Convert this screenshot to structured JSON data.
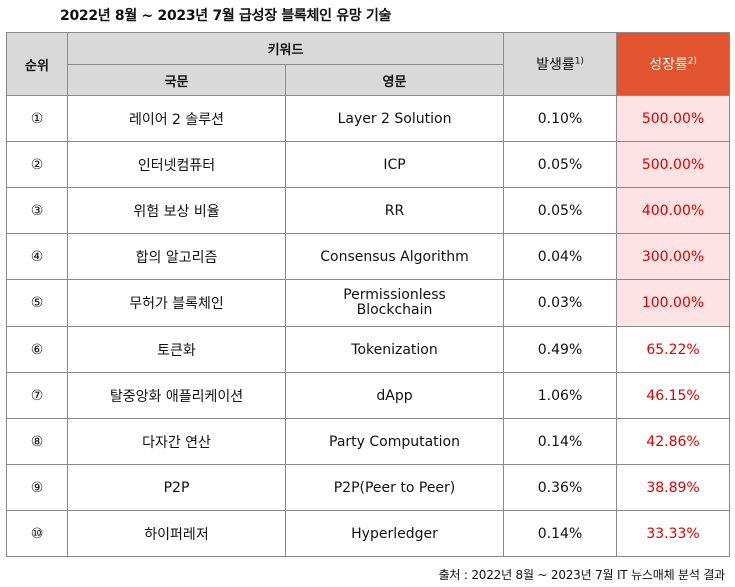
{
  "title": "2022년 8월 ~ 2023년 7월 급성장 블록체인 유망 기술",
  "header": {
    "rank": "순위",
    "keyword": "키워드",
    "korean": "국문",
    "english": "영문",
    "occurrence": "발생률",
    "occurrence_note": "1)",
    "growth": "성장률",
    "growth_note": "2)"
  },
  "rows": [
    {
      "rank": "①",
      "ko": "레이어 2 솔루션",
      "en": "Layer 2 Solution",
      "occurrence": "0.10%",
      "growth": "500.00%",
      "highlight": true
    },
    {
      "rank": "②",
      "ko": "인터넷컴퓨터",
      "en": "ICP",
      "occurrence": "0.05%",
      "growth": "500.00%",
      "highlight": true
    },
    {
      "rank": "③",
      "ko": "위험 보상 비율",
      "en": "RR",
      "occurrence": "0.05%",
      "growth": "400.00%",
      "highlight": true
    },
    {
      "rank": "④",
      "ko": "합의 알고리즘",
      "en": "Consensus Algorithm",
      "occurrence": "0.04%",
      "growth": "300.00%",
      "highlight": true
    },
    {
      "rank": "⑤",
      "ko": "무허가 블록체인",
      "en": "Permissionless Blockchain",
      "en_line1": "Permissionless",
      "en_line2": "Blockchain",
      "occurrence": "0.03%",
      "growth": "100.00%",
      "highlight": true
    },
    {
      "rank": "⑥",
      "ko": "토큰화",
      "en": "Tokenization",
      "occurrence": "0.49%",
      "growth": "65.22%",
      "highlight": false
    },
    {
      "rank": "⑦",
      "ko": "탈중앙화 애플리케이션",
      "en": "dApp",
      "occurrence": "1.06%",
      "growth": "46.15%",
      "highlight": false
    },
    {
      "rank": "⑧",
      "ko": "다자간 연산",
      "en": "Party Computation",
      "occurrence": "0.14%",
      "growth": "42.86%",
      "highlight": false
    },
    {
      "rank": "⑨",
      "ko": "P2P",
      "en": "P2P(Peer to Peer)",
      "occurrence": "0.36%",
      "growth": "38.89%",
      "highlight": false
    },
    {
      "rank": "⑩",
      "ko": "하이퍼레저",
      "en": "Hyperledger",
      "occurrence": "0.14%",
      "growth": "33.33%",
      "highlight": false
    }
  ],
  "colors": {
    "header_bg": "#d9d9d9",
    "growth_header_bg": "#e2532f",
    "growth_highlight_bg": "#fde3e3",
    "growth_text": "#e00000"
  },
  "source": "출처 : 2022년 8월 ~ 2023년 7월 IT 뉴스매체 분석 결과"
}
